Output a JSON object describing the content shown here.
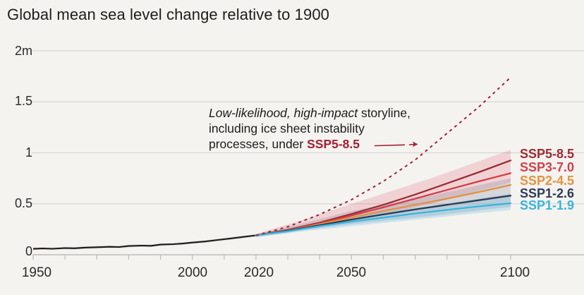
{
  "chart_data": {
    "type": "line",
    "title": "Global mean sea level change relative to 1900",
    "ylabel_unit": "m",
    "x_range": [
      1950,
      2100
    ],
    "y_range": [
      0,
      2
    ],
    "grid": "horizontal-only",
    "y_axis": {
      "ticks": [
        2,
        1.5,
        1,
        0.5,
        0
      ],
      "tick_labels": [
        "2m",
        "1.5",
        "1",
        "0.5",
        "0"
      ]
    },
    "x_axis": {
      "labeled_years": [
        1950,
        2000,
        2020,
        2050,
        2100
      ],
      "tick_labels": [
        "1950",
        "2000",
        "2020",
        "2050",
        "2100"
      ],
      "minor_tick_step_years": 10
    },
    "annotation": {
      "line1_italic": "Low-likelihood, high-impact",
      "line1_rest": " storyline,",
      "line2": "including ice sheet instability",
      "line3_prefix": "processes, under ",
      "line3_scenario": "SSP5-8.5",
      "arrow_color": "#a32033"
    },
    "historical": {
      "name": "Observed",
      "color": "#1a1a1a",
      "band_color": "rgba(0,0,0,0.09)",
      "band_halfwidth_m": 0.013,
      "points": [
        [
          1950,
          0.058
        ],
        [
          1953,
          0.062
        ],
        [
          1956,
          0.059
        ],
        [
          1960,
          0.066
        ],
        [
          1963,
          0.064
        ],
        [
          1966,
          0.07
        ],
        [
          1970,
          0.074
        ],
        [
          1974,
          0.078
        ],
        [
          1977,
          0.076
        ],
        [
          1980,
          0.086
        ],
        [
          1984,
          0.09
        ],
        [
          1987,
          0.088
        ],
        [
          1990,
          0.1
        ],
        [
          1994,
          0.104
        ],
        [
          1997,
          0.11
        ],
        [
          2000,
          0.12
        ],
        [
          2004,
          0.13
        ],
        [
          2008,
          0.145
        ],
        [
          2012,
          0.16
        ],
        [
          2016,
          0.175
        ],
        [
          2020,
          0.19
        ]
      ]
    },
    "low_likelihood_storyline": {
      "name": "Low-likelihood, high-impact storyline under SSP5-8.5",
      "color": "#a32033",
      "style": "dashed",
      "points": [
        [
          2020,
          0.19
        ],
        [
          2030,
          0.275
        ],
        [
          2040,
          0.395
        ],
        [
          2050,
          0.54
        ],
        [
          2060,
          0.72
        ],
        [
          2070,
          0.93
        ],
        [
          2080,
          1.19
        ],
        [
          2090,
          1.45
        ],
        [
          2100,
          1.74
        ]
      ]
    },
    "scenarios": [
      {
        "name": "SSP5-8.5",
        "color": "#9e2a35",
        "points": [
          [
            2020,
            0.19
          ],
          [
            2030,
            0.245
          ],
          [
            2040,
            0.315
          ],
          [
            2050,
            0.4
          ],
          [
            2060,
            0.49
          ],
          [
            2070,
            0.59
          ],
          [
            2080,
            0.7
          ],
          [
            2090,
            0.81
          ],
          [
            2100,
            0.925
          ]
        ]
      },
      {
        "name": "SSP3-7.0",
        "color": "#d23f48",
        "points": [
          [
            2020,
            0.19
          ],
          [
            2030,
            0.24
          ],
          [
            2040,
            0.305
          ],
          [
            2050,
            0.385
          ],
          [
            2060,
            0.465
          ],
          [
            2070,
            0.55
          ],
          [
            2080,
            0.635
          ],
          [
            2090,
            0.72
          ],
          [
            2100,
            0.8
          ]
        ]
      },
      {
        "name": "SSP2-4.5",
        "color": "#e2923f",
        "points": [
          [
            2020,
            0.19
          ],
          [
            2030,
            0.235
          ],
          [
            2040,
            0.3
          ],
          [
            2050,
            0.365
          ],
          [
            2060,
            0.43
          ],
          [
            2070,
            0.49
          ],
          [
            2080,
            0.55
          ],
          [
            2090,
            0.615
          ],
          [
            2100,
            0.685
          ]
        ]
      },
      {
        "name": "SSP1-2.6",
        "color": "#2e3b55",
        "points": [
          [
            2020,
            0.19
          ],
          [
            2030,
            0.235
          ],
          [
            2040,
            0.29
          ],
          [
            2050,
            0.345
          ],
          [
            2060,
            0.395
          ],
          [
            2070,
            0.445
          ],
          [
            2080,
            0.49
          ],
          [
            2090,
            0.535
          ],
          [
            2100,
            0.58
          ]
        ]
      },
      {
        "name": "SSP1-1.9",
        "color": "#38b5dd",
        "points": [
          [
            2020,
            0.19
          ],
          [
            2030,
            0.23
          ],
          [
            2040,
            0.28
          ],
          [
            2050,
            0.325
          ],
          [
            2060,
            0.365
          ],
          [
            2070,
            0.405
          ],
          [
            2080,
            0.44
          ],
          [
            2090,
            0.475
          ],
          [
            2100,
            0.505
          ]
        ]
      }
    ],
    "bands": [
      {
        "name": "high-emissions-range",
        "color": "rgba(222,80,98,0.20)",
        "points": [
          [
            2020,
            0.18,
            0.205
          ],
          [
            2035,
            0.255,
            0.345
          ],
          [
            2050,
            0.33,
            0.5
          ],
          [
            2075,
            0.5,
            0.75
          ],
          [
            2100,
            0.71,
            1.03
          ]
        ]
      },
      {
        "name": "mid-low-range",
        "color": "rgba(105,112,145,0.22)",
        "points": [
          [
            2020,
            0.175,
            0.2
          ],
          [
            2035,
            0.24,
            0.31
          ],
          [
            2050,
            0.3,
            0.43
          ],
          [
            2075,
            0.38,
            0.58
          ],
          [
            2100,
            0.47,
            0.75
          ]
        ]
      },
      {
        "name": "ssp1-1.9-range",
        "color": "rgba(85,185,222,0.25)",
        "points": [
          [
            2020,
            0.17,
            0.195
          ],
          [
            2035,
            0.23,
            0.29
          ],
          [
            2050,
            0.28,
            0.38
          ],
          [
            2075,
            0.36,
            0.48
          ],
          [
            2100,
            0.44,
            0.6
          ]
        ]
      }
    ],
    "legend": [
      {
        "label": "SSP5-8.5",
        "color": "#9e2a35"
      },
      {
        "label": "SSP3-7.0",
        "color": "#d23f48"
      },
      {
        "label": "SSP2-4.5",
        "color": "#e2923f"
      },
      {
        "label": "SSP1-2.6",
        "color": "#2e3b55"
      },
      {
        "label": "SSP1-1.9",
        "color": "#38b5dd"
      }
    ],
    "colors": {
      "background": "#f5f3f0",
      "gridline": "#d8d6d1",
      "axis": "#bebcb7",
      "text": "#1d1d1b"
    }
  }
}
